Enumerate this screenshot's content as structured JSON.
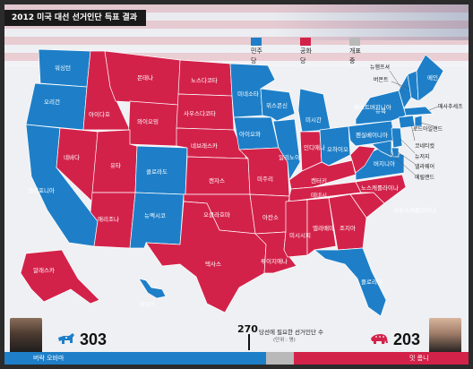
{
  "title": "2012 미국 대선 선거인단 득표 결과",
  "legend": [
    {
      "label": "민주당",
      "color": "#1e7fc8"
    },
    {
      "label": "공화당",
      "color": "#d3224a"
    },
    {
      "label": "개표중",
      "color": "#b9b9b9"
    }
  ],
  "colors": {
    "dem": "#1e7fc8",
    "rep": "#d3224a",
    "pending": "#b9b9b9",
    "ocean": "#eef0f3"
  },
  "states": {
    "wa": "워싱턴",
    "or": "오리건",
    "ca": "캘리포니아",
    "nv": "네바다",
    "id": "아이다호",
    "mt": "몬태나",
    "wy": "와이오밍",
    "ut": "유타",
    "az": "애리조나",
    "co": "콜로라도",
    "nm": "뉴멕시코",
    "nd": "노스다코타",
    "sd": "사우스다코타",
    "ne": "네브래스카",
    "ks": "캔자스",
    "ok": "오클라호마",
    "tx": "텍사스",
    "mn": "미네소타",
    "ia": "아이오와",
    "mo": "미주리",
    "ar": "아칸소",
    "la": "루이지애나",
    "wi": "위스콘신",
    "il": "일리노이",
    "ms": "미시시피",
    "mi": "미시간",
    "in": "인디애나",
    "ky": "켄터키",
    "tn": "테네시",
    "al": "앨라배마",
    "oh": "오하이오",
    "ga": "조지아",
    "fl": "플로리다",
    "sc": "사우스캐롤라이나",
    "nc": "노스캐롤라이나",
    "va": "버지니아",
    "wv": "웨스트버지니아",
    "pa": "펜실베이니아",
    "ny": "뉴욕",
    "me": "메인",
    "ak": "알래스카",
    "hi": "하와이"
  },
  "callouts": {
    "vt": "뉴햄프셔",
    "nh": "버몬트",
    "ma": "매사추세츠",
    "ri": "로드아일랜드",
    "ct": "코네티컷",
    "nj": "뉴저지",
    "de": "델라웨어",
    "md": "메릴랜드"
  },
  "results": {
    "obama": {
      "name": "버락 오바마",
      "votes": "303",
      "party": "democrat"
    },
    "romney": {
      "name": "밋 롬니",
      "votes": "203",
      "party": "republican"
    }
  },
  "threshold": {
    "value": "270",
    "label": "당선에 필요한 선거인단 수",
    "unit": "(단위 : 명)"
  }
}
